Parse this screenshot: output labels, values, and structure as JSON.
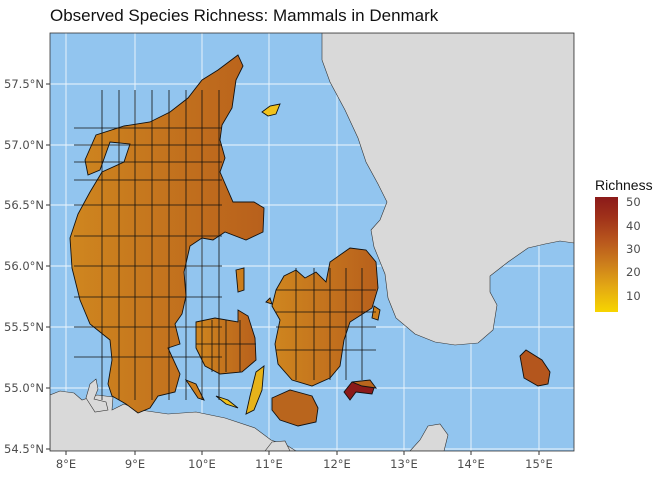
{
  "title": "Observed Species Richness: Mammals in Denmark",
  "lat_ticks": [
    "57.5°N",
    "57.0°N",
    "56.5°N",
    "56.0°N",
    "55.5°N",
    "55.0°N",
    "54.5°N"
  ],
  "lon_ticks": [
    "8°E",
    "9°E",
    "10°E",
    "11°E",
    "12°E",
    "13°E",
    "14°E",
    "15°E"
  ],
  "legend": {
    "title": "Richness",
    "ticks": [
      "50",
      "40",
      "30",
      "20",
      "10"
    ]
  },
  "colors": {
    "sea": "#92c5ef",
    "land": "#d9d9d9",
    "grid": "#ffffff",
    "low": "#f7d500",
    "high": "#8b1a1a"
  }
}
